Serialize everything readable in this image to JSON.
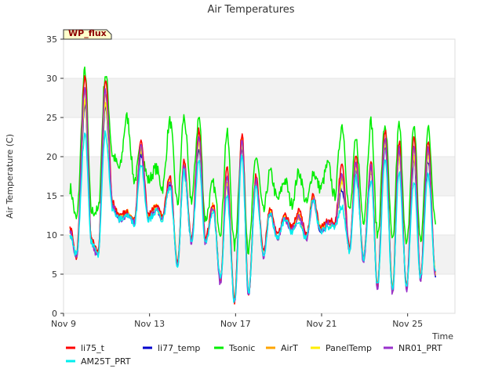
{
  "chart_data": {
    "type": "line",
    "title": "Air Temperatures",
    "xlabel": "Time",
    "ylabel": "Air Temperature (C)",
    "ylim": [
      0,
      35
    ],
    "xlim": [
      0,
      18.2
    ],
    "x_unit": "days from Nov 9",
    "yticks": [
      0,
      5,
      10,
      15,
      20,
      25,
      30,
      35
    ],
    "xticks": [
      {
        "x": 0,
        "label": "Nov 9"
      },
      {
        "x": 4,
        "label": "Nov 13"
      },
      {
        "x": 8,
        "label": "Nov 17"
      },
      {
        "x": 12,
        "label": "Nov 21"
      },
      {
        "x": 16,
        "label": "Nov 25"
      }
    ],
    "badge": "WP_flux",
    "grid": "horizontal bands",
    "legend_position": "bottom",
    "series": [
      {
        "name": "li75_t",
        "color": "#ff0000"
      },
      {
        "name": "li77_temp",
        "color": "#0000cc"
      },
      {
        "name": "Tsonic",
        "color": "#00ee00"
      },
      {
        "name": "AirT",
        "color": "#ffa500"
      },
      {
        "name": "PanelTemp",
        "color": "#ffee00"
      },
      {
        "name": "NR01_PRT",
        "color": "#9932cc"
      },
      {
        "name": "AM25T_PRT",
        "color": "#00eeee"
      }
    ],
    "daily_profile": {
      "t": [
        0.3,
        0.6,
        1.0,
        1.3,
        1.6,
        1.95,
        2.3,
        2.6,
        2.95,
        3.3,
        3.6,
        3.95,
        4.3,
        4.6,
        4.95,
        5.3,
        5.6,
        5.95,
        6.3,
        6.6,
        6.95,
        7.3,
        7.6,
        7.95,
        8.3,
        8.6,
        8.95,
        9.3,
        9.6,
        9.95,
        10.3,
        10.6,
        10.95,
        11.3,
        11.6,
        11.95,
        12.3,
        12.6,
        12.95,
        13.3,
        13.6,
        13.95,
        14.3,
        14.6,
        14.95,
        15.3,
        15.6,
        15.95,
        16.3,
        16.6,
        16.95,
        17.3
      ],
      "AM25T_PRT": [
        10,
        7.5,
        23,
        9,
        7.5,
        23,
        13,
        12,
        12.5,
        11.5,
        19,
        12,
        13,
        12,
        16,
        6,
        18,
        9,
        19.5,
        9,
        13,
        4.5,
        15,
        1.5,
        20,
        2.5,
        16,
        7.5,
        12.5,
        9.5,
        12,
        10.5,
        11.5,
        9.5,
        14.5,
        10.5,
        11,
        11,
        13.5,
        8,
        17.5,
        7,
        17,
        3.5,
        19.5,
        3,
        18,
        3.5,
        17,
        4.5,
        17.5,
        5
      ],
      "li75_t": [
        11,
        7.2,
        30.5,
        9.2,
        7.8,
        30,
        14,
        12.5,
        13,
        12,
        22,
        12.5,
        14,
        12.5,
        17.5,
        6.5,
        19.5,
        9.5,
        23.5,
        9.5,
        14,
        4,
        18.5,
        1.5,
        23,
        2.5,
        17.5,
        7.8,
        13.5,
        10,
        12.5,
        11,
        13,
        10,
        15,
        11,
        12,
        11.5,
        19,
        8.5,
        20,
        7,
        19.5,
        3.5,
        23.5,
        3,
        22,
        3.5,
        22.5,
        4.5,
        22,
        5
      ],
      "Tsonic": [
        16,
        12,
        31,
        13,
        13,
        30.5,
        20,
        18.5,
        25,
        17,
        21,
        17,
        18.5,
        16,
        24.5,
        14,
        25,
        14.5,
        25,
        12,
        16.5,
        10.5,
        23,
        8.5,
        22,
        8,
        20,
        13,
        18,
        14.5,
        17,
        14,
        18,
        14,
        18,
        16,
        19,
        15,
        24,
        13,
        22,
        12,
        24.5,
        10,
        24,
        9,
        24,
        8.5,
        24,
        9,
        23.5,
        12
      ]
    }
  }
}
